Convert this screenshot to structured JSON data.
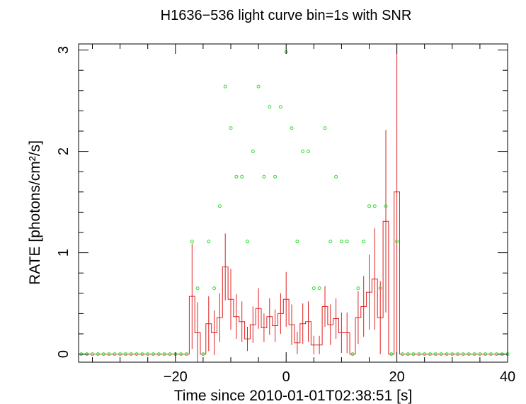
{
  "chart_data": {
    "type": "line",
    "title": "H1636−536 light curve bin=1s with SNR",
    "xlabel": "Time since 2010-01-01T02:38:51 [s]",
    "ylabel": "RATE [photons/cm²/s]",
    "xlim": [
      -37.5,
      40
    ],
    "ylim": [
      -0.08,
      3.06
    ],
    "x_ticks": [
      -20,
      0,
      20,
      40
    ],
    "x_tick_labels": [
      "−20",
      "0",
      "20",
      "40"
    ],
    "y_ticks": [
      0,
      1,
      2,
      3
    ],
    "y_tick_labels": [
      "0",
      "1",
      "2",
      "3"
    ],
    "grid": false,
    "legend": "none",
    "colors": {
      "rate": "#e02020",
      "snr": "#33dd33",
      "axes": "#000000"
    },
    "series": [
      {
        "style": "histogram-step-with-error-bars",
        "x": [
          -37,
          -36,
          -35,
          -34,
          -33,
          -32,
          -31,
          -30,
          -29,
          -28,
          -27,
          -26,
          -25,
          -24,
          -23,
          -22,
          -21,
          -20,
          -19,
          -18,
          -17,
          -16,
          -15,
          -14,
          -13,
          -12,
          -11,
          -10,
          -9,
          -8,
          -7,
          -6,
          -5,
          -4,
          -3,
          -2,
          -1,
          0,
          1,
          2,
          3,
          4,
          5,
          6,
          7,
          8,
          9,
          10,
          11,
          12,
          13,
          14,
          15,
          16,
          17,
          18,
          19,
          20,
          21,
          22,
          23,
          24,
          25,
          26,
          27,
          28,
          29,
          30,
          31,
          32,
          33,
          34,
          35,
          36,
          37,
          38,
          39
        ],
        "values": [
          0,
          0,
          0,
          0,
          0,
          0,
          0,
          0,
          0,
          0,
          0,
          0,
          0,
          0,
          0,
          0,
          0,
          0,
          0,
          0,
          0.57,
          0.21,
          0,
          0.3,
          0.21,
          0.36,
          0.86,
          0.54,
          0.37,
          0.32,
          0.15,
          0.29,
          0.45,
          0.26,
          0.37,
          0.28,
          0.4,
          0.54,
          0.29,
          0.11,
          0.3,
          0.32,
          0.09,
          0.09,
          0.47,
          0.29,
          0.35,
          0.21,
          0.21,
          0,
          0.36,
          0.47,
          0.61,
          0.74,
          0.36,
          1.31,
          0,
          1.6,
          0,
          0,
          0,
          0,
          0,
          0,
          0,
          0,
          0,
          0,
          0,
          0,
          0,
          0,
          0,
          0,
          0,
          0,
          0
        ],
        "errors": [
          0,
          0,
          0,
          0,
          0,
          0,
          0,
          0,
          0,
          0,
          0,
          0,
          0,
          0,
          0,
          0,
          0,
          0,
          0,
          0,
          0.52,
          0.3,
          0,
          0.27,
          0.22,
          0.24,
          0.33,
          0.3,
          0.22,
          0.2,
          0.12,
          0.18,
          0.2,
          0.14,
          0.18,
          0.16,
          0.2,
          0.27,
          0.2,
          0.11,
          0.2,
          0.2,
          0.09,
          0.09,
          0.2,
          0.2,
          0.2,
          0.2,
          0.2,
          0,
          0.26,
          0.3,
          0.37,
          0.5,
          0.36,
          0.9,
          0,
          1.6,
          0,
          0,
          0,
          0,
          0,
          0,
          0,
          0,
          0,
          0,
          0,
          0,
          0,
          0,
          0,
          0,
          0,
          0,
          0
        ]
      },
      {
        "style": "open-circle-markers",
        "x": [
          -37,
          -36,
          -35,
          -34,
          -33,
          -32,
          -31,
          -30,
          -29,
          -28,
          -27,
          -26,
          -25,
          -24,
          -23,
          -22,
          -21,
          -20,
          -19,
          -18,
          -17,
          -16,
          -15,
          -14,
          -13,
          -12,
          -11,
          -10,
          -9,
          -8,
          -7,
          -6,
          -5,
          -4,
          -3,
          -2,
          -1,
          0,
          1,
          2,
          3,
          4,
          5,
          6,
          7,
          8,
          9,
          10,
          11,
          12,
          13,
          14,
          15,
          16,
          17,
          18,
          19,
          20,
          21,
          22,
          23,
          24,
          25,
          26,
          27,
          28,
          29,
          30,
          31,
          32,
          33,
          34,
          35,
          36,
          37,
          38,
          39,
          40
        ],
        "values": [
          0,
          0,
          0,
          0,
          0,
          0,
          0,
          0,
          0,
          0,
          0,
          0,
          0,
          0,
          0,
          0,
          0,
          0,
          0,
          0,
          1.11,
          0.65,
          0,
          1.11,
          0.65,
          1.46,
          2.64,
          2.23,
          1.75,
          1.75,
          1.11,
          2.0,
          2.64,
          1.75,
          2.44,
          1.75,
          2.44,
          2.98,
          2.23,
          1.11,
          2.0,
          2.0,
          0.65,
          0.65,
          2.23,
          1.11,
          1.75,
          1.11,
          1.11,
          0,
          0.65,
          1.11,
          1.46,
          1.46,
          0.65,
          1.46,
          0,
          1.11,
          0,
          0,
          0,
          0,
          0,
          0,
          0,
          0,
          0,
          0,
          0,
          0,
          0,
          0,
          0,
          0,
          0,
          0,
          0,
          0
        ]
      }
    ]
  }
}
